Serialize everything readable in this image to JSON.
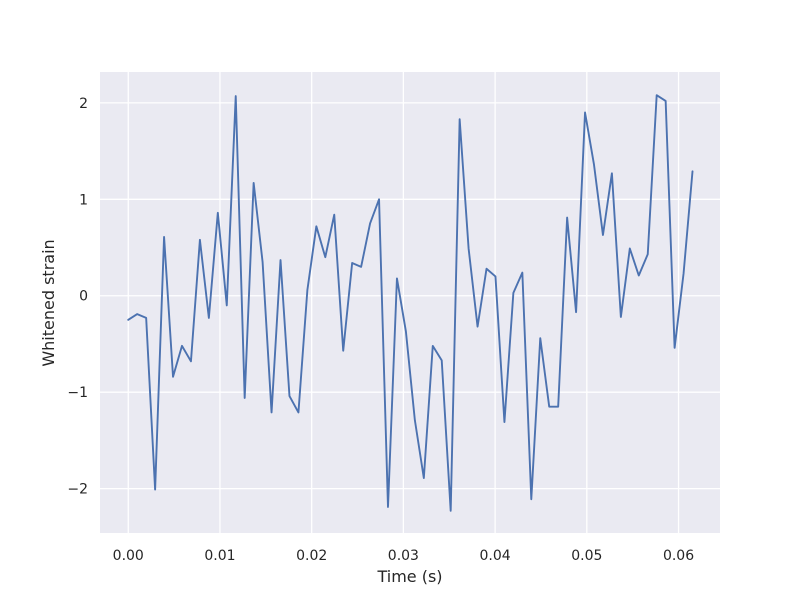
{
  "chart_data": {
    "type": "line",
    "title": "",
    "xlabel": "Time (s)",
    "ylabel": "Whitened strain",
    "xlim": [
      -0.00308,
      0.06452
    ],
    "ylim": [
      -2.46,
      2.32
    ],
    "grid": true,
    "legend": "none",
    "colors": {
      "plot_background": "#eaeaf2",
      "grid": "#ffffff",
      "line": "#4c72b0",
      "text": "#262626"
    },
    "x_ticks": [
      0.0,
      0.01,
      0.02,
      0.03,
      0.04,
      0.05,
      0.06
    ],
    "x_tick_labels": [
      "0.00",
      "0.01",
      "0.02",
      "0.03",
      "0.04",
      "0.05",
      "0.06"
    ],
    "y_ticks": [
      -2,
      -1,
      0,
      1,
      2
    ],
    "y_tick_labels": [
      "−2",
      "−1",
      "0",
      "1",
      "2"
    ],
    "series": [
      {
        "x": [
          0.0,
          0.000977,
          0.001953,
          0.00293,
          0.003906,
          0.004883,
          0.005859,
          0.006836,
          0.007813,
          0.008789,
          0.009766,
          0.010742,
          0.011719,
          0.012695,
          0.013672,
          0.014648,
          0.015625,
          0.016602,
          0.017578,
          0.018555,
          0.019531,
          0.020508,
          0.021484,
          0.022461,
          0.023438,
          0.024414,
          0.025391,
          0.026367,
          0.027344,
          0.02832,
          0.029297,
          0.030273,
          0.03125,
          0.032227,
          0.033203,
          0.03418,
          0.035156,
          0.036133,
          0.037109,
          0.038086,
          0.039063,
          0.040039,
          0.041016,
          0.041992,
          0.042969,
          0.043945,
          0.044922,
          0.045898,
          0.046875,
          0.047852,
          0.048828,
          0.049805,
          0.050781,
          0.051758,
          0.052734,
          0.053711,
          0.054688,
          0.055664,
          0.056641,
          0.057617,
          0.058594,
          0.05957,
          0.060547,
          0.061523
        ],
        "y": [
          -0.25,
          -0.19,
          -0.23,
          -2.01,
          0.61,
          -0.84,
          -0.52,
          -0.68,
          0.58,
          -0.23,
          0.86,
          -0.1,
          2.07,
          -1.06,
          1.17,
          0.35,
          -1.21,
          0.37,
          -1.04,
          -1.21,
          0.06,
          0.72,
          0.4,
          0.84,
          -0.57,
          0.34,
          0.3,
          0.75,
          1.0,
          -2.19,
          0.18,
          -0.37,
          -1.29,
          -1.89,
          -0.52,
          -0.67,
          -2.23,
          1.83,
          0.49,
          -0.32,
          0.28,
          0.2,
          -1.31,
          0.03,
          0.24,
          -2.11,
          -0.44,
          -1.15,
          -1.15,
          0.81,
          -0.17,
          1.9,
          1.36,
          0.63,
          1.27,
          -0.22,
          0.49,
          0.21,
          0.43,
          2.08,
          2.02,
          -0.54,
          0.23,
          1.29
        ]
      }
    ]
  }
}
